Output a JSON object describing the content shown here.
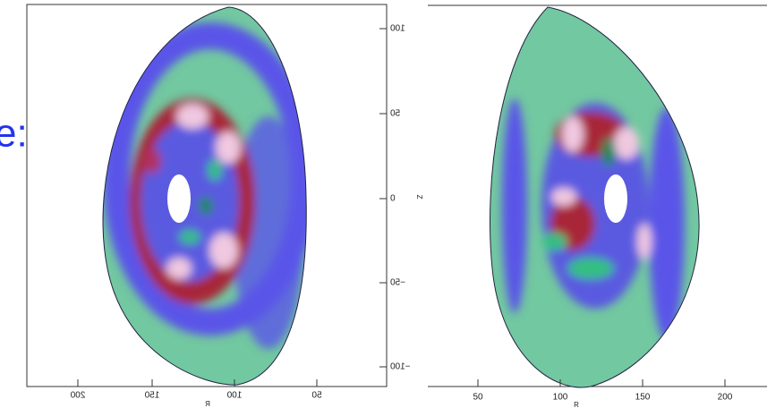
{
  "slide_text": "e:",
  "left_plot": {
    "x_ticks": [
      "200",
      "150",
      "100",
      "50"
    ],
    "x_label": "R",
    "y_ticks": [
      "100",
      "50",
      "0",
      "−50",
      "−100"
    ]
  },
  "right_plot": {
    "x_ticks": [
      "50",
      "100",
      "150",
      "200"
    ],
    "x_label": "R",
    "y_label": "Z"
  }
}
